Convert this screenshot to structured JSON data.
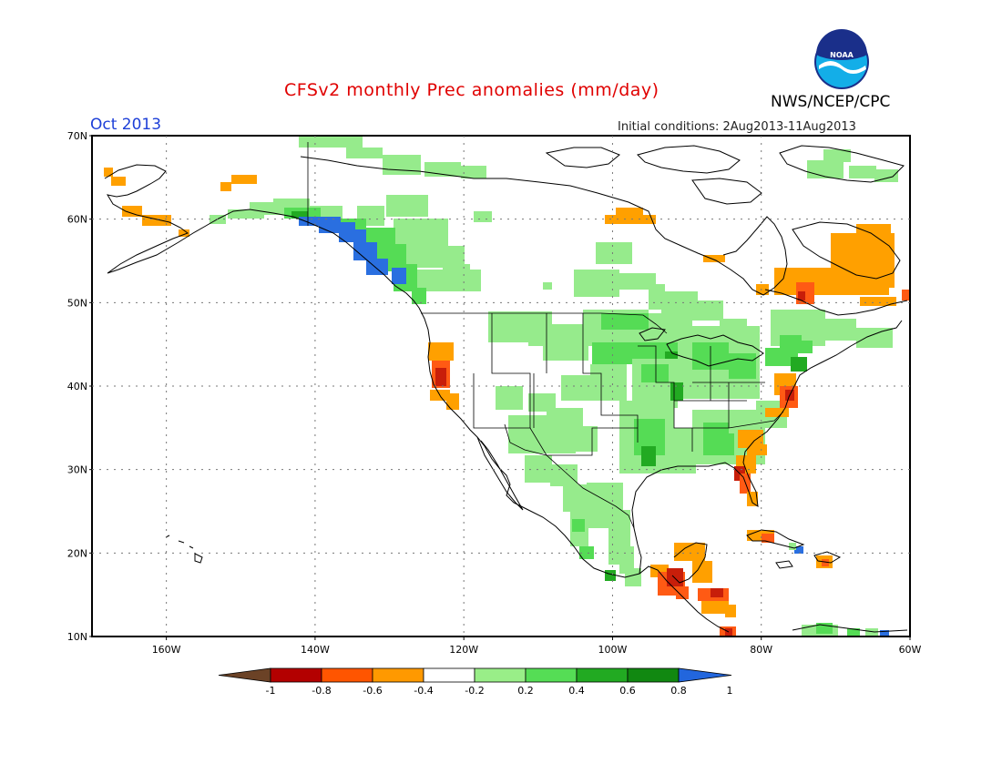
{
  "title": "CFSv2 monthly Prec anomalies (mm/day)",
  "agency": "NWS/NCEP/CPC",
  "logo_text": "NOAA",
  "month": "Oct 2013",
  "initial_conditions": "Initial conditions: 2Aug2013-11Aug2013",
  "map": {
    "lon_range": [
      -170,
      -60
    ],
    "lat_range": [
      10,
      70
    ],
    "lat_labels": [
      "70N",
      "60N",
      "50N",
      "40N",
      "30N",
      "20N",
      "10N"
    ],
    "lon_labels": [
      "160W",
      "140W",
      "120W",
      "100W",
      "80W",
      "60W"
    ]
  },
  "colorbar": {
    "labels": [
      "-1",
      "-0.8",
      "-0.6",
      "-0.4",
      "-0.2",
      "0.2",
      "0.4",
      "0.6",
      "0.8",
      "1"
    ],
    "colors": [
      "#6b4226",
      "#b30000",
      "#ff5500",
      "#ff9900",
      "#ffffff",
      "#99ee88",
      "#55dd55",
      "#22aa22",
      "#118811",
      "#2266dd"
    ]
  },
  "anomaly_colors": {
    "dark_red": "#c81e0a",
    "red": "#ff5a14",
    "orange": "#ffa000",
    "light_green": "#96eb8c",
    "green": "#55dc55",
    "dark_green": "#22aa22",
    "blue": "#2a6fe0"
  }
}
